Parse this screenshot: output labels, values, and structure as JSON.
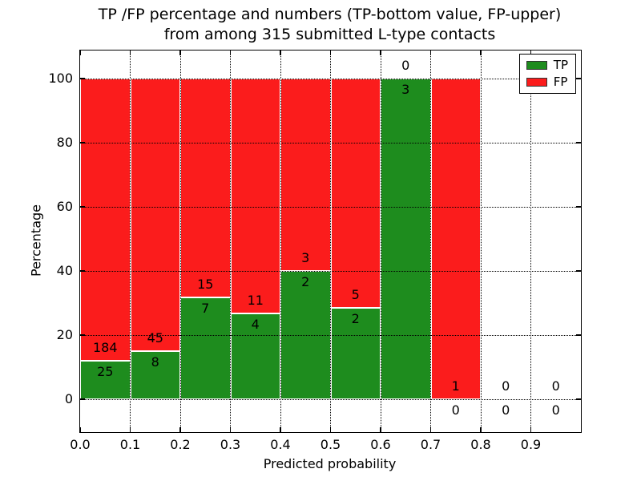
{
  "chart_data": {
    "type": "bar",
    "stacked": true,
    "title_line1": "TP /FP percentage and numbers (TP-bottom value, FP-upper)",
    "title_line2": "from among 315 submitted L-type contacts",
    "xlabel": "Predicted probability",
    "ylabel": "Percentage",
    "x_ticks": [
      "0.0",
      "0.1",
      "0.2",
      "0.3",
      "0.4",
      "0.5",
      "0.6",
      "0.7",
      "0.8",
      "0.9"
    ],
    "y_ticks": [
      "0",
      "20",
      "40",
      "60",
      "80",
      "100"
    ],
    "xlim": [
      0.0,
      1.0
    ],
    "ylim": [
      -10,
      109
    ],
    "bin_width": 0.1,
    "grid": "dotted both axes, drawn above bars",
    "legend_position": "upper right",
    "bins": [
      {
        "x_start": 0.0,
        "tp": 25,
        "fp": 184
      },
      {
        "x_start": 0.1,
        "tp": 8,
        "fp": 45
      },
      {
        "x_start": 0.2,
        "tp": 7,
        "fp": 15
      },
      {
        "x_start": 0.3,
        "tp": 4,
        "fp": 11
      },
      {
        "x_start": 0.4,
        "tp": 2,
        "fp": 3
      },
      {
        "x_start": 0.5,
        "tp": 2,
        "fp": 5
      },
      {
        "x_start": 0.6,
        "tp": 3,
        "fp": 0
      },
      {
        "x_start": 0.7,
        "tp": 0,
        "fp": 1
      },
      {
        "x_start": 0.8,
        "tp": 0,
        "fp": 0
      },
      {
        "x_start": 0.9,
        "tp": 0,
        "fp": 0
      }
    ],
    "legend": [
      {
        "label": "TP",
        "color": "#1e8c1e"
      },
      {
        "label": "FP",
        "color": "#fb1c1c"
      }
    ]
  }
}
